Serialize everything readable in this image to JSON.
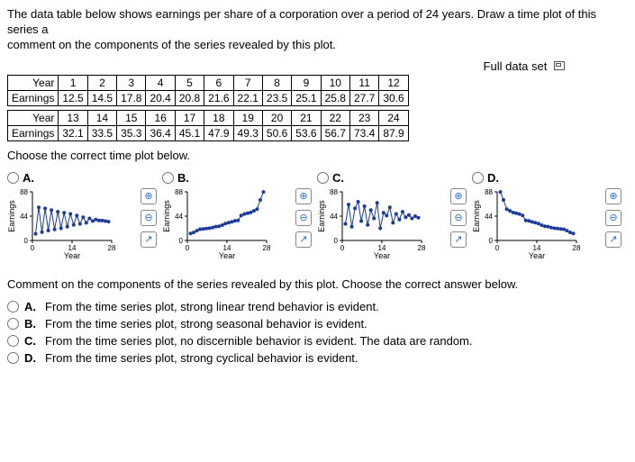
{
  "prompt_line1": "The data table below shows earnings per share of a corporation over a period of 24 years. Draw a time plot of this series a",
  "prompt_line2": "comment on the components of the series revealed by this plot.",
  "full_data_link": "Full data set",
  "table": {
    "year_label": "Year",
    "earnings_label": "Earnings",
    "years1": [
      "1",
      "2",
      "3",
      "4",
      "5",
      "6",
      "7",
      "8",
      "9",
      "10",
      "11",
      "12"
    ],
    "earnings1": [
      "12.5",
      "14.5",
      "17.8",
      "20.4",
      "20.8",
      "21.6",
      "22.1",
      "23.5",
      "25.1",
      "25.8",
      "27.7",
      "30.6"
    ],
    "years2": [
      "13",
      "14",
      "15",
      "16",
      "17",
      "18",
      "19",
      "20",
      "21",
      "22",
      "23",
      "24"
    ],
    "earnings2": [
      "32.1",
      "33.5",
      "35.3",
      "36.4",
      "45.1",
      "47.9",
      "49.3",
      "50.6",
      "53.6",
      "56.7",
      "73.4",
      "87.9"
    ]
  },
  "choose_plot": "Choose the correct time plot below.",
  "plots": {
    "axes": {
      "xlabel": "Year",
      "ylabel": "Earnings",
      "yticks": [
        "0",
        "44",
        "88"
      ],
      "xticks": [
        "0",
        "14",
        "28"
      ],
      "ymax": 88,
      "xmax": 28
    },
    "style": {
      "line_color": "#1a3a9c",
      "marker_color": "#1a3a9c",
      "marker_size": 2,
      "axis_color": "#000",
      "tick_font": 8
    },
    "options": [
      {
        "label": "A.",
        "type": "zigzag",
        "series": [
          12,
          60,
          15,
          58,
          18,
          55,
          20,
          52,
          22,
          50,
          25,
          48,
          28,
          45,
          30,
          42,
          32,
          40,
          35,
          38,
          36,
          36,
          35,
          34
        ]
      },
      {
        "label": "B.",
        "type": "correct",
        "series": [
          12.5,
          14.5,
          17.8,
          20.4,
          20.8,
          21.6,
          22.1,
          23.5,
          25.1,
          25.8,
          27.7,
          30.6,
          32.1,
          33.5,
          35.3,
          36.4,
          45.1,
          47.9,
          49.3,
          50.6,
          53.6,
          56.7,
          73.4,
          87.9
        ]
      },
      {
        "label": "C.",
        "type": "random",
        "series": [
          30,
          65,
          25,
          58,
          70,
          35,
          62,
          28,
          55,
          40,
          68,
          22,
          50,
          45,
          60,
          32,
          48,
          38,
          52,
          42,
          46,
          40,
          44,
          41
        ]
      },
      {
        "label": "D.",
        "type": "decline",
        "series": [
          87.9,
          73.4,
          56.7,
          53.6,
          50.6,
          49.3,
          47.9,
          45.1,
          36.4,
          35.3,
          33.5,
          32.1,
          30.6,
          27.7,
          25.8,
          25.1,
          23.5,
          22.1,
          21.6,
          20.8,
          20.4,
          17.8,
          14.5,
          12.5
        ]
      }
    ]
  },
  "comment_prompt": "Comment on the components of the series revealed by this plot. Choose the correct answer below.",
  "answers": [
    {
      "label": "A.",
      "text": "From the time series plot, strong linear trend behavior is evident."
    },
    {
      "label": "B.",
      "text": "From the time series plot, strong seasonal behavior is evident."
    },
    {
      "label": "C.",
      "text": "From the time series plot, no discernible behavior is evident. The data are random."
    },
    {
      "label": "D.",
      "text": "From the time series plot, strong cyclical behavior is evident."
    }
  ]
}
